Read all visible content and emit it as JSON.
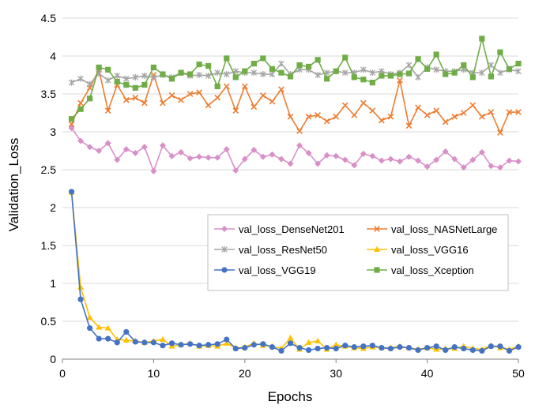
{
  "chart_data": {
    "type": "line",
    "xlabel": "Epochs",
    "ylabel": "Validation_Loss",
    "xlim": [
      0,
      50
    ],
    "ylim": [
      0,
      4.5
    ],
    "x_ticks": [
      "0",
      "10",
      "20",
      "30",
      "40",
      "50"
    ],
    "y_ticks": [
      "0",
      "0.5",
      "1",
      "1.5",
      "2",
      "2.5",
      "3",
      "3.5",
      "4",
      "4.5"
    ],
    "grid": "horizontal",
    "legend_position": "center-right",
    "x": [
      1,
      2,
      3,
      4,
      5,
      6,
      7,
      8,
      9,
      10,
      11,
      12,
      13,
      14,
      15,
      16,
      17,
      18,
      19,
      20,
      21,
      22,
      23,
      24,
      25,
      26,
      27,
      28,
      29,
      30,
      31,
      32,
      33,
      34,
      35,
      36,
      37,
      38,
      39,
      40,
      41,
      42,
      43,
      44,
      45,
      46,
      47,
      48,
      49,
      50
    ],
    "series": [
      {
        "name": "val_loss_DenseNet201",
        "color": "#d98fc8",
        "marker": "diamond",
        "values": [
          3.05,
          2.88,
          2.8,
          2.75,
          2.85,
          2.63,
          2.77,
          2.72,
          2.8,
          2.48,
          2.82,
          2.68,
          2.73,
          2.65,
          2.67,
          2.66,
          2.66,
          2.77,
          2.49,
          2.64,
          2.76,
          2.67,
          2.7,
          2.64,
          2.58,
          2.82,
          2.72,
          2.58,
          2.69,
          2.68,
          2.63,
          2.56,
          2.71,
          2.68,
          2.62,
          2.64,
          2.61,
          2.67,
          2.62,
          2.54,
          2.63,
          2.74,
          2.64,
          2.53,
          2.63,
          2.73,
          2.55,
          2.53,
          2.62,
          2.61
        ]
      },
      {
        "name": "val_loss_NASNetLarge",
        "color": "#ed7d31",
        "marker": "x",
        "values": [
          3.1,
          3.38,
          3.58,
          3.82,
          3.28,
          3.62,
          3.42,
          3.45,
          3.38,
          3.75,
          3.38,
          3.48,
          3.42,
          3.5,
          3.52,
          3.35,
          3.45,
          3.6,
          3.28,
          3.6,
          3.33,
          3.48,
          3.4,
          3.56,
          3.2,
          3.01,
          3.2,
          3.22,
          3.14,
          3.2,
          3.35,
          3.22,
          3.38,
          3.28,
          3.15,
          3.2,
          3.68,
          3.08,
          3.32,
          3.22,
          3.28,
          3.13,
          3.2,
          3.25,
          3.35,
          3.2,
          3.26,
          2.99,
          3.26,
          3.26
        ]
      },
      {
        "name": "val_loss_ResNet50",
        "color": "#a5a5a5",
        "marker": "star",
        "values": [
          3.65,
          3.7,
          3.63,
          3.77,
          3.68,
          3.74,
          3.7,
          3.72,
          3.74,
          3.72,
          3.75,
          3.72,
          3.78,
          3.74,
          3.75,
          3.74,
          3.78,
          3.76,
          3.8,
          3.78,
          3.78,
          3.76,
          3.76,
          3.9,
          3.76,
          3.82,
          3.82,
          3.75,
          3.78,
          3.8,
          3.78,
          3.78,
          3.82,
          3.78,
          3.8,
          3.76,
          3.78,
          3.88,
          3.72,
          3.85,
          3.82,
          3.8,
          3.8,
          3.82,
          3.78,
          3.78,
          3.88,
          3.78,
          3.82,
          3.8
        ]
      },
      {
        "name": "val_loss_VGG16",
        "color": "#ffc000",
        "marker": "triangle",
        "values": [
          2.2,
          0.95,
          0.55,
          0.42,
          0.41,
          0.26,
          0.25,
          0.24,
          0.22,
          0.24,
          0.26,
          0.17,
          0.19,
          0.21,
          0.17,
          0.18,
          0.17,
          0.21,
          0.15,
          0.16,
          0.21,
          0.18,
          0.17,
          0.14,
          0.28,
          0.13,
          0.22,
          0.24,
          0.13,
          0.19,
          0.17,
          0.15,
          0.14,
          0.16,
          0.15,
          0.15,
          0.17,
          0.15,
          0.13,
          0.15,
          0.13,
          0.14,
          0.14,
          0.17,
          0.14,
          0.13,
          0.18,
          0.15,
          0.13,
          0.17
        ]
      },
      {
        "name": "val_loss_VGG19",
        "color": "#4472c4",
        "marker": "circle",
        "values": [
          2.21,
          0.79,
          0.41,
          0.27,
          0.27,
          0.22,
          0.36,
          0.23,
          0.22,
          0.22,
          0.18,
          0.21,
          0.19,
          0.2,
          0.18,
          0.19,
          0.2,
          0.26,
          0.14,
          0.15,
          0.19,
          0.2,
          0.16,
          0.11,
          0.21,
          0.15,
          0.12,
          0.14,
          0.15,
          0.14,
          0.18,
          0.16,
          0.17,
          0.18,
          0.15,
          0.14,
          0.16,
          0.15,
          0.12,
          0.15,
          0.17,
          0.12,
          0.16,
          0.14,
          0.12,
          0.11,
          0.17,
          0.17,
          0.11,
          0.16
        ]
      },
      {
        "name": "val_loss_Xception",
        "color": "#70ad47",
        "marker": "square",
        "values": [
          3.17,
          3.3,
          3.44,
          3.85,
          3.82,
          3.66,
          3.62,
          3.58,
          3.62,
          3.85,
          3.76,
          3.7,
          3.78,
          3.76,
          3.89,
          3.87,
          3.6,
          3.97,
          3.72,
          3.8,
          3.9,
          3.97,
          3.83,
          3.78,
          3.73,
          3.88,
          3.86,
          3.95,
          3.7,
          3.8,
          3.98,
          3.72,
          3.69,
          3.65,
          3.74,
          3.74,
          3.76,
          3.77,
          3.96,
          3.83,
          4.02,
          3.76,
          3.78,
          3.88,
          3.72,
          4.23,
          3.73,
          4.05,
          3.83,
          3.9
        ]
      }
    ]
  }
}
